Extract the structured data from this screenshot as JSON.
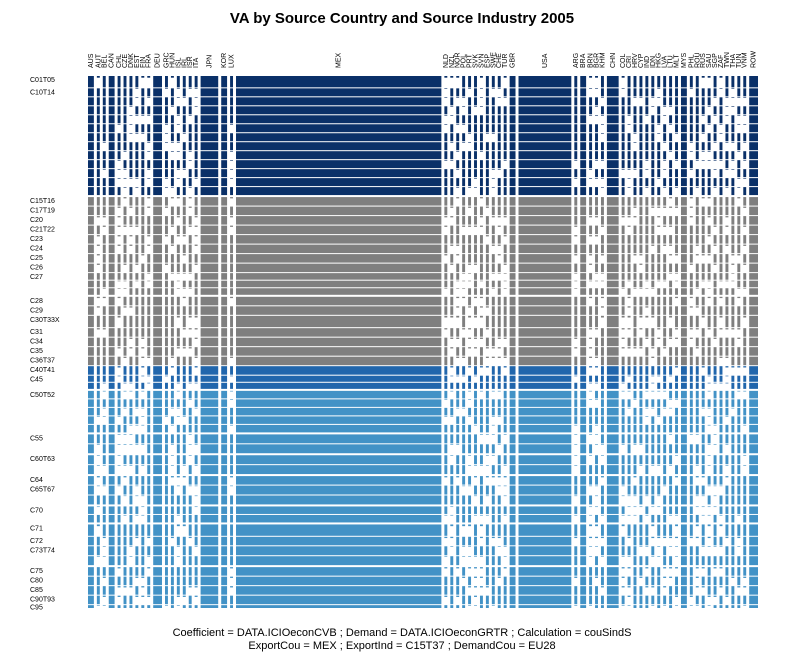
{
  "chart_data": {
    "type": "heatmap",
    "subtype": "mosaic",
    "title": "VA by Source Country and Source Industry 2005",
    "footer": [
      "Coefficient = DATA.ICIOeconCVB ; Demand = DATA.ICIOeconGRTR ; Calculation = couSindS",
      "ExportCou = MEX ; ExportInd = C15T37 ; DemandCou = EU28"
    ],
    "colors": {
      "primary": "#0a3068",
      "manufacturing": "#7f7f7f",
      "services": "#4292c6",
      "accent": "#2166ac"
    },
    "countries": [
      "AUS",
      "AUT",
      "BEL",
      "CAN",
      "CHL",
      "CZE",
      "DNK",
      "EST",
      "FIN",
      "FRA",
      "DEU",
      "GRC",
      "HUN",
      "ISL",
      "IRL",
      "ISR",
      "ITA",
      "JPN",
      "KOR",
      "LUX",
      "MEX",
      "NLD",
      "NZL",
      "NOR",
      "POL",
      "PRT",
      "SVK",
      "SVN",
      "ESP",
      "SWE",
      "CHE",
      "TUR",
      "GBR",
      "USA",
      "ARG",
      "BRA",
      "BRN",
      "BGR",
      "KHM",
      "CHN",
      "COL",
      "CRI",
      "HRV",
      "CYP",
      "IND",
      "IDN",
      "HKG",
      "LVA",
      "LTU",
      "MLT",
      "MYS",
      "PHL",
      "ROU",
      "RUS",
      "SAU",
      "SGP",
      "ZAF",
      "TWN",
      "THA",
      "TUN",
      "VNM",
      "ROW"
    ],
    "country_widths": [
      2,
      1,
      1,
      2,
      1,
      1,
      1,
      1,
      1,
      1,
      3,
      1,
      1,
      1,
      1,
      1,
      1,
      6,
      2,
      1,
      70,
      1,
      1,
      1,
      1,
      1,
      1,
      1,
      1,
      1,
      1,
      1,
      2,
      18,
      1,
      2,
      1,
      1,
      1,
      4,
      1,
      1,
      1,
      1,
      1,
      1,
      1,
      1,
      1,
      1,
      2,
      1,
      1,
      1,
      1,
      1,
      1,
      1,
      1,
      1,
      1,
      3
    ],
    "x_labels_printed": [
      "AUS",
      "AUT",
      "BEL",
      "CAN",
      "CHL",
      "CZE",
      "DNK",
      "EST",
      "FIN",
      "FRA",
      "DEU",
      "GRC",
      "HUN",
      "ISL",
      "IRL",
      "ISR",
      "ITA",
      "JPN",
      "KOR",
      "LUX",
      "MEX",
      "NLD",
      "NZL",
      "NOR",
      "POL",
      "PRT",
      "SVK",
      "SVN",
      "ESP",
      "SWE",
      "CHE",
      "TUR",
      "GBR",
      "USA",
      "ARG",
      "BRA",
      "BRN",
      "BGR",
      "KHM",
      "CHN",
      "COL",
      "CRI",
      "HRV",
      "CYP",
      "IND",
      "IDN",
      "HKG",
      "LVA",
      "LTU",
      "MLT",
      "MYS",
      "PHL",
      "ROU",
      "RUS",
      "SAU",
      "SGP",
      "ZAF",
      "TWN",
      "THA",
      "TUN",
      "VNM",
      "ROW"
    ],
    "industries": [
      "C01T05",
      "C10T14",
      "C15T16",
      "C17T19",
      "C20",
      "C21T22",
      "C23",
      "C24",
      "C25",
      "C26",
      "C27",
      "C28",
      "C29",
      "C30T33X",
      "C31",
      "C34",
      "C35",
      "C36T37",
      "C40T41",
      "C45",
      "C50T52",
      "C55",
      "C60T63",
      "C64",
      "C65T67",
      "C70",
      "C71",
      "C72",
      "C73T74",
      "C75",
      "C80",
      "C85",
      "C90T93",
      "C95"
    ],
    "industry_heights": [
      4,
      38,
      3,
      3,
      3,
      3,
      3,
      3,
      3,
      3,
      8,
      3,
      3,
      4,
      3,
      3,
      3,
      3,
      3,
      5,
      15,
      7,
      7,
      3,
      7,
      6,
      4,
      3,
      7,
      3,
      3,
      3,
      3,
      1
    ],
    "industry_groups": [
      "primary",
      "primary",
      "manufacturing",
      "manufacturing",
      "manufacturing",
      "manufacturing",
      "manufacturing",
      "manufacturing",
      "manufacturing",
      "manufacturing",
      "manufacturing",
      "manufacturing",
      "manufacturing",
      "manufacturing",
      "manufacturing",
      "manufacturing",
      "manufacturing",
      "manufacturing",
      "accent",
      "accent",
      "services",
      "services",
      "services",
      "services",
      "services",
      "services",
      "services",
      "services",
      "services",
      "services",
      "services",
      "services",
      "services",
      "services"
    ]
  }
}
